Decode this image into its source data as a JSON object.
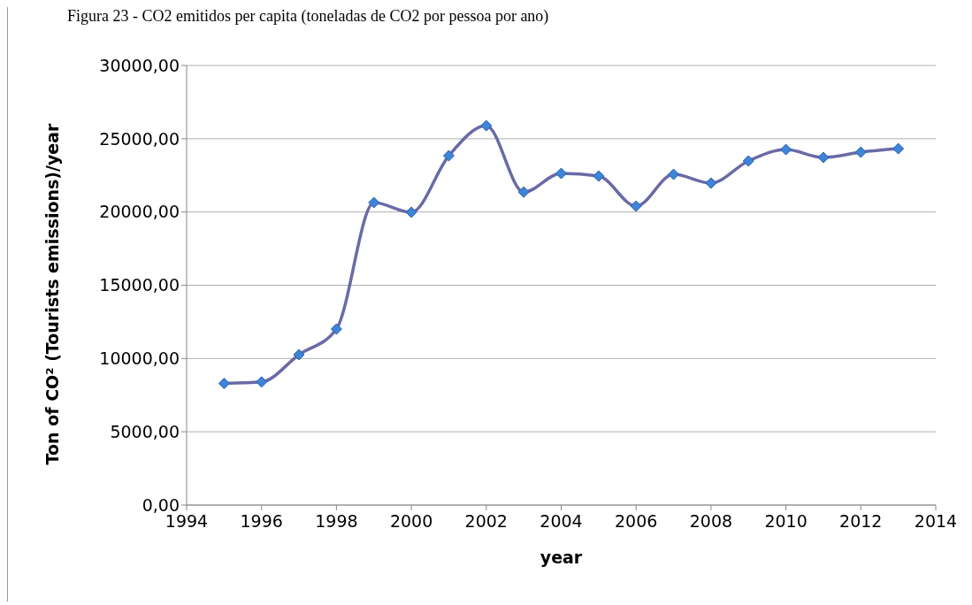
{
  "chart_data": {
    "type": "line",
    "title": "Figura 23 - CO2 emitidos per capita (toneladas de CO2 por pessoa por ano)",
    "xlabel": "year",
    "ylabel": "Ton of CO² (Tourists emissions)/year",
    "x": [
      1995,
      1996,
      1997,
      1998,
      1999,
      2000,
      2001,
      2002,
      2003,
      2004,
      2005,
      2006,
      2007,
      2008,
      2009,
      2010,
      2011,
      2012,
      2013
    ],
    "series": [
      {
        "color": "#6a6aa6",
        "values": [
          8300,
          8400,
          10260,
          12010,
          20640,
          19980,
          23840,
          25890,
          21360,
          22630,
          22450,
          20400,
          22570,
          21970,
          23480,
          24260,
          23720,
          24080,
          24320
        ]
      }
    ],
    "xlim": [
      1994,
      2014
    ],
    "xticks": [
      1994,
      1996,
      1998,
      2000,
      2002,
      2004,
      2006,
      2008,
      2010,
      2012,
      2014
    ],
    "ylim": [
      0,
      30000
    ],
    "yticks": [
      {
        "value": 0,
        "label": "0,00"
      },
      {
        "value": 5000,
        "label": "5000,00"
      },
      {
        "value": 10000,
        "label": "10000,00"
      },
      {
        "value": 15000,
        "label": "15000,00"
      },
      {
        "value": 20000,
        "label": "20000,00"
      },
      {
        "value": 25000,
        "label": "25000,00"
      },
      {
        "value": 30000,
        "label": "30000,00"
      }
    ],
    "grid": "y",
    "marker": "diamond",
    "line_style": "solid"
  }
}
